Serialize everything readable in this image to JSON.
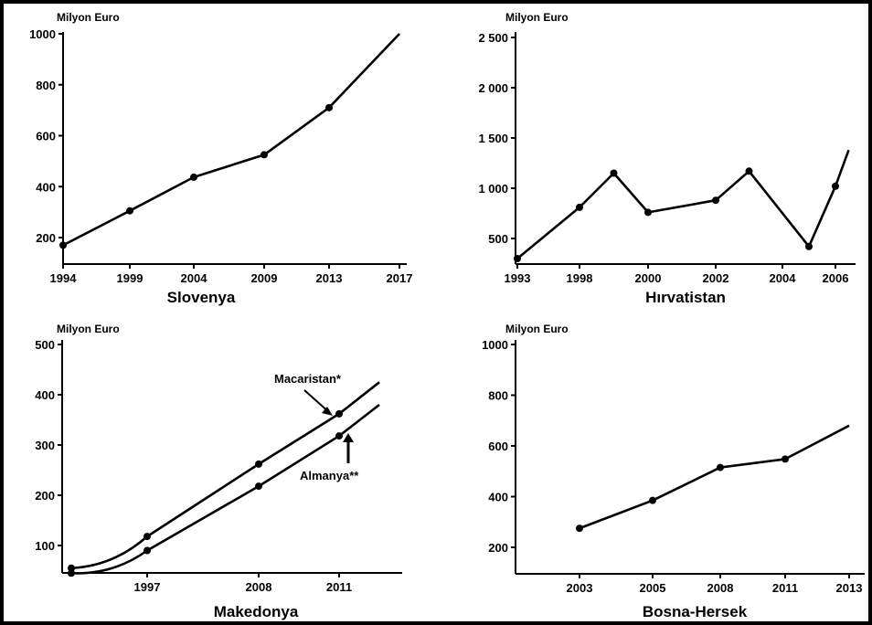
{
  "chart_data": [
    {
      "type": "line",
      "title": "Slovenya",
      "ylabel": "Milyon Euro",
      "ylim": [
        100,
        1000
      ],
      "yticks": [
        200,
        400,
        600,
        800,
        1000
      ],
      "xticks": [
        "1994",
        "1999",
        "2004",
        "2009",
        "2013",
        "2017"
      ],
      "x": [
        1994,
        1999,
        2004,
        2009,
        2013,
        2017
      ],
      "values": [
        170,
        305,
        437,
        525,
        710,
        1000
      ],
      "marker_count": 5
    },
    {
      "type": "line",
      "title": "Hırvatistan",
      "ylabel": "Milyon Euro",
      "ylim": [
        300,
        2500
      ],
      "yticks": [
        "500",
        "1 000",
        "1 500",
        "2 000",
        "2 500"
      ],
      "ytick_values": [
        500,
        1000,
        1500,
        2000,
        2500
      ],
      "xticks": [
        "1993",
        "1998",
        "2000",
        "2002",
        "2004",
        "2006"
      ],
      "x": [
        1993,
        1998,
        1999,
        2000,
        2002,
        2003,
        2005,
        2006,
        2006.5
      ],
      "values": [
        300,
        810,
        1150,
        760,
        880,
        1170,
        420,
        1020,
        1380
      ],
      "marker_count": 8
    },
    {
      "type": "line",
      "title": "Makedonya",
      "ylabel": "Milyon Euro",
      "ylim": [
        40,
        500
      ],
      "yticks": [
        100,
        200,
        300,
        400,
        500
      ],
      "xticks": [
        "1997",
        "2008",
        "2011"
      ],
      "series": [
        {
          "name": "Macaristan*",
          "x": [
            1992,
            1997,
            2008,
            2011,
            2012.5
          ],
          "values": [
            55,
            118,
            262,
            362,
            425
          ],
          "markers": [
            1992,
            1997,
            2008,
            2011
          ]
        },
        {
          "name": "Almanya**",
          "x": [
            1992,
            1997,
            2008,
            2011,
            2012.5
          ],
          "values": [
            45,
            90,
            218,
            318,
            380
          ],
          "markers": [
            1992,
            1997,
            2008,
            2011
          ]
        }
      ]
    },
    {
      "type": "line",
      "title": "Bosna-Hersek",
      "ylabel": "Milyon Euro",
      "ylim": [
        100,
        1000
      ],
      "yticks": [
        200,
        400,
        600,
        800,
        1000
      ],
      "xticks": [
        "2003",
        "2005",
        "2008",
        "2011",
        "2013"
      ],
      "x": [
        2003,
        2005,
        2008,
        2011,
        2013
      ],
      "values": [
        275,
        385,
        515,
        548,
        680
      ],
      "marker_count": 4
    }
  ]
}
